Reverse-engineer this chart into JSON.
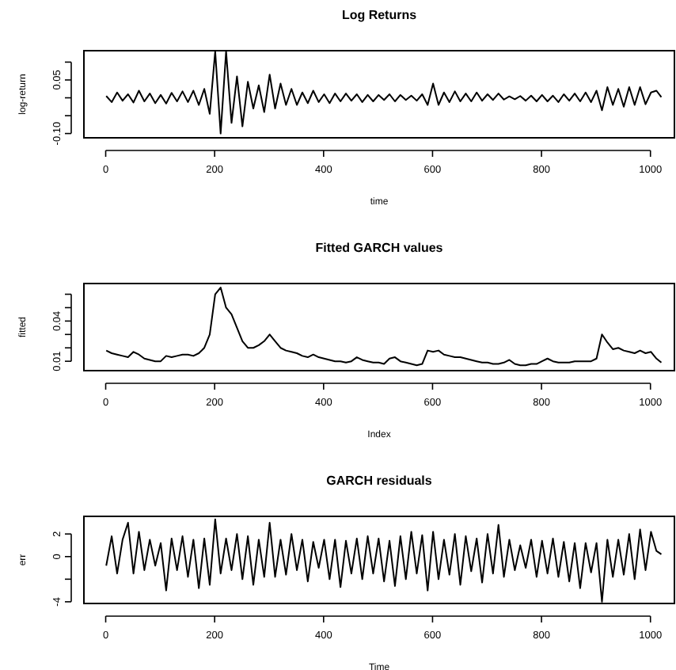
{
  "chart_data": [
    {
      "type": "line",
      "title": "Log Returns",
      "xlabel": "time",
      "ylabel": "log-return",
      "xlim": [
        -40,
        1044
      ],
      "xticks": [
        0,
        200,
        400,
        600,
        800,
        1000
      ],
      "ylim": [
        -0.112,
        0.132
      ],
      "yticks": [
        {
          "value": -0.1,
          "label": "-0.10"
        },
        {
          "value": -0.05,
          "label": null
        },
        {
          "value": 0,
          "label": null
        },
        {
          "value": 0.05,
          "label": "0.05"
        },
        {
          "value": 0.1,
          "label": null
        }
      ],
      "x": [
        1,
        11,
        21,
        31,
        41,
        51,
        61,
        71,
        81,
        91,
        101,
        111,
        121,
        131,
        141,
        151,
        161,
        171,
        181,
        191,
        201,
        211,
        221,
        231,
        241,
        251,
        261,
        271,
        281,
        291,
        301,
        311,
        321,
        331,
        341,
        351,
        361,
        371,
        381,
        391,
        401,
        411,
        421,
        431,
        441,
        451,
        461,
        471,
        481,
        491,
        501,
        511,
        521,
        531,
        541,
        551,
        561,
        571,
        581,
        591,
        601,
        611,
        621,
        631,
        641,
        651,
        661,
        671,
        681,
        691,
        701,
        711,
        721,
        731,
        741,
        751,
        761,
        771,
        781,
        791,
        801,
        811,
        821,
        831,
        841,
        851,
        861,
        871,
        881,
        891,
        901,
        911,
        921,
        931,
        941,
        951,
        961,
        971,
        981,
        991,
        1001,
        1011,
        1020
      ],
      "series": [
        {
          "color": "#000000",
          "values": [
            0.005,
            -0.012,
            0.015,
            -0.008,
            0.01,
            -0.013,
            0.02,
            -0.01,
            0.012,
            -0.015,
            0.008,
            -0.016,
            0.014,
            -0.01,
            0.018,
            -0.012,
            0.02,
            -0.02,
            0.025,
            -0.045,
            0.13,
            -0.1,
            0.13,
            -0.07,
            0.06,
            -0.08,
            0.045,
            -0.03,
            0.035,
            -0.04,
            0.065,
            -0.03,
            0.04,
            -0.02,
            0.025,
            -0.02,
            0.015,
            -0.015,
            0.02,
            -0.012,
            0.01,
            -0.015,
            0.012,
            -0.01,
            0.012,
            -0.008,
            0.01,
            -0.012,
            0.008,
            -0.01,
            0.008,
            -0.006,
            0.01,
            -0.01,
            0.008,
            -0.006,
            0.006,
            -0.008,
            0.01,
            -0.02,
            0.04,
            -0.02,
            0.015,
            -0.012,
            0.018,
            -0.01,
            0.012,
            -0.01,
            0.015,
            -0.008,
            0.01,
            -0.006,
            0.012,
            -0.005,
            0.004,
            -0.004,
            0.005,
            -0.008,
            0.006,
            -0.01,
            0.008,
            -0.01,
            0.006,
            -0.012,
            0.01,
            -0.008,
            0.012,
            -0.01,
            0.015,
            -0.012,
            0.02,
            -0.035,
            0.03,
            -0.02,
            0.025,
            -0.025,
            0.03,
            -0.02,
            0.03,
            -0.018,
            0.015,
            0.02,
            0.002
          ]
        }
      ]
    },
    {
      "type": "line",
      "title": "Fitted GARCH values",
      "xlabel": "Index",
      "ylabel": "fitted",
      "xlim": [
        -40,
        1044
      ],
      "xticks": [
        0,
        200,
        400,
        600,
        800,
        1000
      ],
      "ylim": [
        0.003,
        0.068
      ],
      "yticks": [
        {
          "value": 0.01,
          "label": "0.01"
        },
        {
          "value": 0.02,
          "label": null
        },
        {
          "value": 0.03,
          "label": null
        },
        {
          "value": 0.04,
          "label": "0.04"
        },
        {
          "value": 0.05,
          "label": null
        },
        {
          "value": 0.06,
          "label": null
        }
      ],
      "x": [
        1,
        11,
        21,
        31,
        41,
        51,
        61,
        71,
        81,
        91,
        101,
        111,
        121,
        131,
        141,
        151,
        161,
        171,
        181,
        191,
        201,
        211,
        221,
        231,
        241,
        251,
        261,
        271,
        281,
        291,
        301,
        311,
        321,
        331,
        341,
        351,
        361,
        371,
        381,
        391,
        401,
        411,
        421,
        431,
        441,
        451,
        461,
        471,
        481,
        491,
        501,
        511,
        521,
        531,
        541,
        551,
        561,
        571,
        581,
        591,
        601,
        611,
        621,
        631,
        641,
        651,
        661,
        671,
        681,
        691,
        701,
        711,
        721,
        731,
        741,
        751,
        761,
        771,
        781,
        791,
        801,
        811,
        821,
        831,
        841,
        851,
        861,
        871,
        881,
        891,
        901,
        911,
        921,
        931,
        941,
        951,
        961,
        971,
        981,
        991,
        1001,
        1011,
        1020
      ],
      "series": [
        {
          "color": "#000000",
          "values": [
            0.018,
            0.016,
            0.015,
            0.014,
            0.013,
            0.017,
            0.015,
            0.012,
            0.011,
            0.01,
            0.01,
            0.014,
            0.013,
            0.014,
            0.015,
            0.015,
            0.014,
            0.016,
            0.02,
            0.03,
            0.06,
            0.065,
            0.05,
            0.045,
            0.035,
            0.025,
            0.02,
            0.02,
            0.022,
            0.025,
            0.03,
            0.025,
            0.02,
            0.018,
            0.017,
            0.016,
            0.014,
            0.013,
            0.015,
            0.013,
            0.012,
            0.011,
            0.01,
            0.01,
            0.009,
            0.01,
            0.013,
            0.011,
            0.01,
            0.009,
            0.009,
            0.008,
            0.012,
            0.013,
            0.01,
            0.009,
            0.008,
            0.007,
            0.008,
            0.018,
            0.017,
            0.018,
            0.015,
            0.014,
            0.013,
            0.013,
            0.012,
            0.011,
            0.01,
            0.009,
            0.009,
            0.008,
            0.008,
            0.009,
            0.011,
            0.008,
            0.007,
            0.007,
            0.008,
            0.008,
            0.01,
            0.012,
            0.01,
            0.009,
            0.009,
            0.009,
            0.01,
            0.01,
            0.01,
            0.01,
            0.012,
            0.03,
            0.024,
            0.019,
            0.02,
            0.018,
            0.017,
            0.016,
            0.018,
            0.016,
            0.017,
            0.012,
            0.009
          ]
        }
      ]
    },
    {
      "type": "line",
      "title": "GARCH residuals",
      "xlabel": "Time",
      "ylabel": "err",
      "xlim": [
        -40,
        1044
      ],
      "xticks": [
        0,
        200,
        400,
        600,
        800,
        1000
      ],
      "ylim": [
        -4.15,
        3.56
      ],
      "yticks": [
        {
          "value": -4,
          "label": "-4"
        },
        {
          "value": -2,
          "label": null
        },
        {
          "value": 0,
          "label": "0"
        },
        {
          "value": 2,
          "label": "2"
        }
      ],
      "x": [
        1,
        11,
        21,
        31,
        41,
        51,
        61,
        71,
        81,
        91,
        101,
        111,
        121,
        131,
        141,
        151,
        161,
        171,
        181,
        191,
        201,
        211,
        221,
        231,
        241,
        251,
        261,
        271,
        281,
        291,
        301,
        311,
        321,
        331,
        341,
        351,
        361,
        371,
        381,
        391,
        401,
        411,
        421,
        431,
        441,
        451,
        461,
        471,
        481,
        491,
        501,
        511,
        521,
        531,
        541,
        551,
        561,
        571,
        581,
        591,
        601,
        611,
        621,
        631,
        641,
        651,
        661,
        671,
        681,
        691,
        701,
        711,
        721,
        731,
        741,
        751,
        761,
        771,
        781,
        791,
        801,
        811,
        821,
        831,
        841,
        851,
        861,
        871,
        881,
        891,
        901,
        911,
        921,
        931,
        941,
        951,
        961,
        971,
        981,
        991,
        1001,
        1011,
        1020
      ],
      "series": [
        {
          "color": "#000000",
          "values": [
            -0.8,
            1.8,
            -1.5,
            1.5,
            3.0,
            -1.5,
            2.2,
            -1.2,
            1.5,
            -0.8,
            1.2,
            -3.0,
            1.6,
            -1.2,
            1.8,
            -1.8,
            1.5,
            -2.8,
            1.6,
            -2.5,
            3.3,
            -1.5,
            1.6,
            -1.2,
            2.0,
            -2.0,
            1.8,
            -2.5,
            1.5,
            -1.8,
            3.0,
            -1.8,
            1.5,
            -1.6,
            2.0,
            -1.2,
            1.5,
            -2.2,
            1.3,
            -1.0,
            1.5,
            -2.0,
            1.5,
            -2.7,
            1.4,
            -1.5,
            1.6,
            -2.0,
            1.8,
            -1.5,
            1.6,
            -2.2,
            1.4,
            -2.6,
            1.8,
            -2.0,
            2.2,
            -1.5,
            1.9,
            -3.0,
            2.2,
            -2.0,
            1.5,
            -1.6,
            2.0,
            -2.5,
            1.8,
            -1.3,
            1.6,
            -2.3,
            2.0,
            -1.5,
            2.8,
            -1.8,
            1.5,
            -1.2,
            1.0,
            -1.0,
            1.5,
            -1.8,
            1.4,
            -1.5,
            1.6,
            -1.8,
            1.3,
            -2.2,
            1.2,
            -2.8,
            1.2,
            -1.4,
            1.2,
            -4.0,
            1.5,
            -1.8,
            1.5,
            -1.6,
            2.0,
            -2.0,
            2.4,
            -1.2,
            2.2,
            0.5,
            0.2
          ]
        }
      ]
    }
  ]
}
